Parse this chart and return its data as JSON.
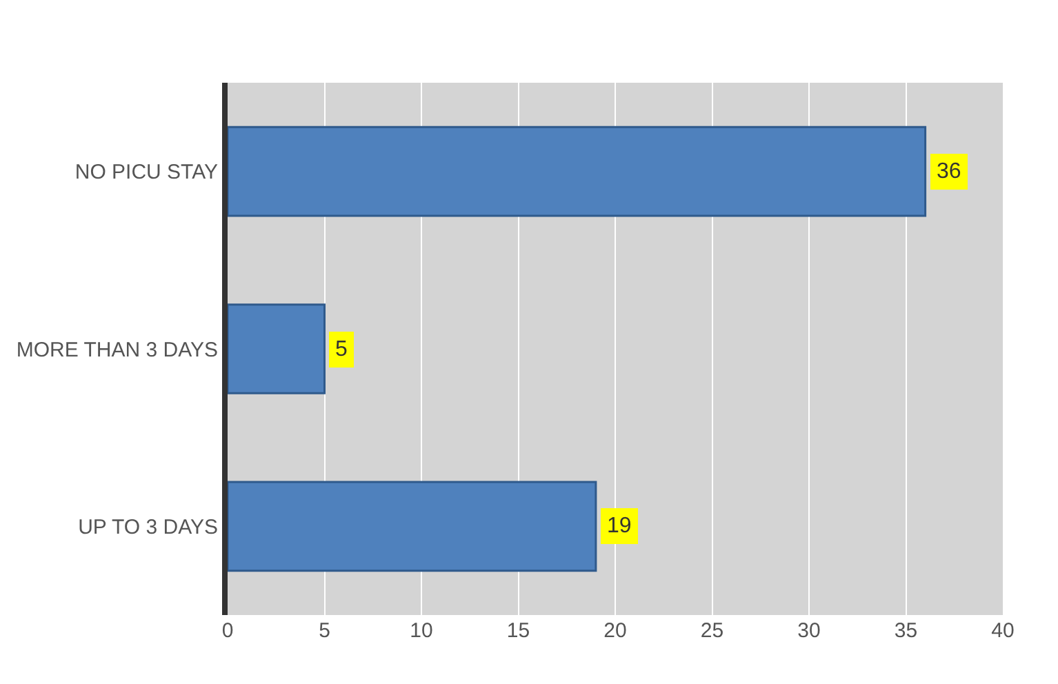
{
  "chart_data": {
    "type": "bar",
    "orientation": "horizontal",
    "categories": [
      "NO PICU STAY",
      "MORE THAN 3 DAYS",
      "UP TO 3 DAYS"
    ],
    "values": [
      36,
      5,
      19
    ],
    "color": "#4f81bd",
    "xlim": [
      0,
      40
    ],
    "xticks": [
      0,
      5,
      10,
      15,
      20,
      25,
      30,
      35,
      40
    ],
    "grid": "x",
    "data_labels": true
  }
}
